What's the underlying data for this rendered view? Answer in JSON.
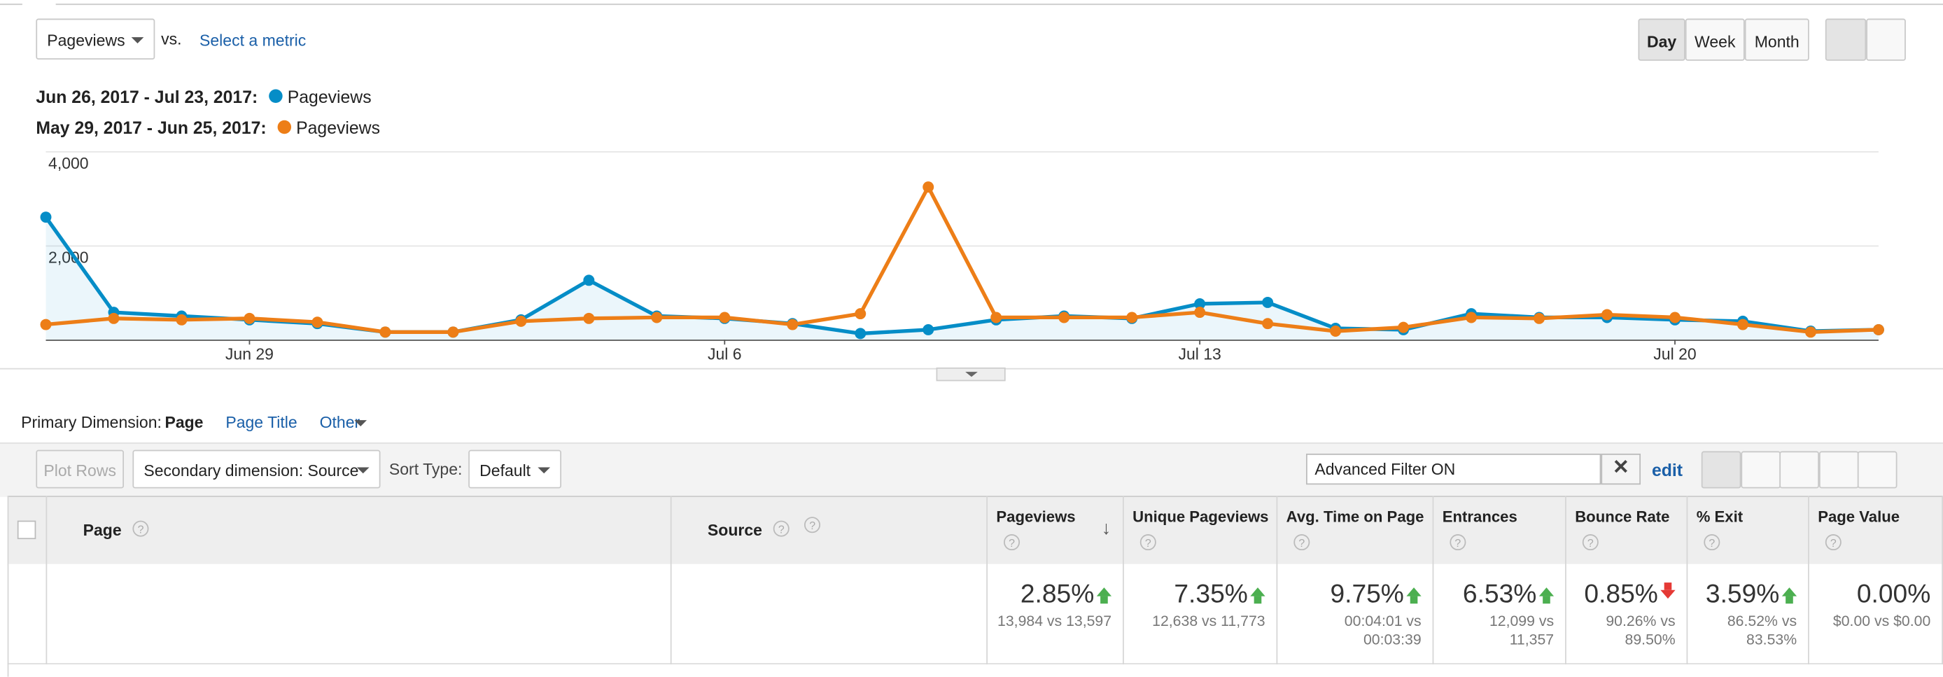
{
  "controls": {
    "metric": "Pageviews",
    "vs": "vs.",
    "select_metric": "Select a metric",
    "intervals": [
      "Day",
      "Week",
      "Month"
    ],
    "selected_interval": 0
  },
  "chart_data": {
    "type": "line",
    "categories": [
      null,
      null,
      null,
      "Jun 29",
      null,
      null,
      null,
      null,
      null,
      null,
      "Jul 6",
      null,
      null,
      null,
      null,
      null,
      null,
      "Jul 13",
      null,
      null,
      null,
      null,
      null,
      null,
      "Jul 20",
      null,
      null,
      null
    ],
    "series": [
      {
        "label": "Jun 26, 2017 - Jul 23, 2017:",
        "name": "Pageviews",
        "color": "#058dc7",
        "area": true,
        "values": [
          2600,
          580,
          500,
          420,
          340,
          160,
          160,
          420,
          1260,
          500,
          450,
          340,
          130,
          210,
          420,
          500,
          450,
          760,
          790,
          240,
          210,
          550,
          470,
          470,
          420,
          390,
          180,
          210
        ]
      },
      {
        "label": "May 29, 2017 - Jun 25, 2017:",
        "name": "Pageviews",
        "color": "#ed7e17",
        "values": [
          320,
          450,
          420,
          450,
          370,
          160,
          160,
          390,
          450,
          470,
          470,
          320,
          550,
          3240,
          470,
          470,
          470,
          580,
          340,
          180,
          260,
          470,
          450,
          530,
          470,
          320,
          160,
          210
        ]
      }
    ],
    "ylim": [
      0,
      4000
    ],
    "yticks": [
      {
        "value": 2000,
        "label": "2,000"
      },
      {
        "value": 4000,
        "label": "4,000"
      }
    ],
    "grid": true
  },
  "dimension_bar": {
    "label": "Primary Dimension:",
    "options": [
      "Page",
      "Page Title",
      "Other"
    ],
    "selected": 0
  },
  "toolbar": {
    "plot_rows": "Plot Rows",
    "secondary": "Secondary dimension: Source",
    "sort_label": "Sort Type:",
    "sort": "Default",
    "filter": "Advanced Filter ON",
    "edit": "edit"
  },
  "table": {
    "help_icon": "?",
    "columns": [
      "Page",
      "Source",
      "Pageviews",
      "Unique Pageviews",
      "Avg. Time on Page",
      "Entrances",
      "Bounce Rate",
      "% Exit",
      "Page Value"
    ],
    "summary": [
      {
        "change": "2.85%",
        "trend": "up",
        "detail": "13,984 vs 13,597"
      },
      {
        "change": "7.35%",
        "trend": "up",
        "detail": "12,638 vs 11,773"
      },
      {
        "change": "9.75%",
        "trend": "up",
        "detail": "00:04:01 vs 00:03:39"
      },
      {
        "change": "6.53%",
        "trend": "up",
        "detail": "12,099 vs 11,357"
      },
      {
        "change": "0.85%",
        "trend": "down",
        "detail": "90.26% vs 89.50%"
      },
      {
        "change": "3.59%",
        "trend": "up",
        "detail": "86.52% vs 83.53%"
      },
      {
        "change": "0.00%",
        "detail": "$0.00 vs $0.00"
      }
    ]
  }
}
